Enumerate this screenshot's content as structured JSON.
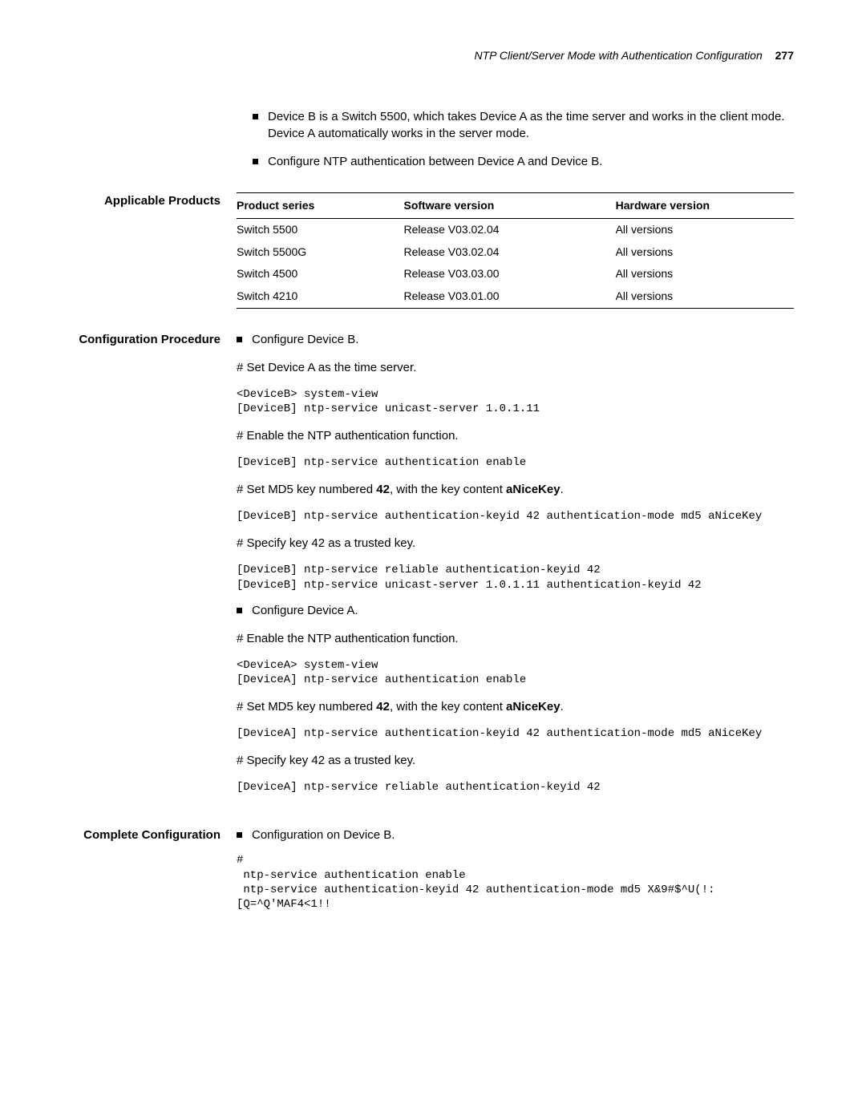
{
  "header": {
    "title": "NTP Client/Server Mode with Authentication Configuration",
    "page": "277"
  },
  "intro_bullets": [
    "Device B is a Switch 5500, which takes Device A as the time server and works in the client mode. Device A automatically works in the server mode.",
    "Configure NTP authentication between Device A and Device B."
  ],
  "sections": {
    "applicable_products": {
      "heading": "Applicable Products",
      "table": {
        "columns": [
          "Product series",
          "Software version",
          "Hardware version"
        ],
        "rows": [
          [
            "Switch 5500",
            "Release V03.02.04",
            "All versions"
          ],
          [
            "Switch 5500G",
            "Release V03.02.04",
            "All versions"
          ],
          [
            "Switch 4500",
            "Release V03.03.00",
            "All versions"
          ],
          [
            "Switch 4210",
            "Release V03.01.00",
            "All versions"
          ]
        ]
      }
    },
    "config_procedure": {
      "heading": "Configuration Procedure",
      "bullet1": "Configure Device B.",
      "step1_text": "# Set Device A as the time server.",
      "step1_code": "<DeviceB> system-view\n[DeviceB] ntp-service unicast-server 1.0.1.11",
      "step2_text": "# Enable the NTP authentication function.",
      "step2_code": "[DeviceB] ntp-service authentication enable",
      "step3_prefix": "# Set MD5 key numbered ",
      "step3_key": "42",
      "step3_mid": ", with the key content ",
      "step3_content": "aNiceKey",
      "step3_suffix": ".",
      "step3_code": "[DeviceB] ntp-service authentication-keyid 42 authentication-mode md5 aNiceKey",
      "step4_text": "# Specify key 42 as a trusted key.",
      "step4_code": "[DeviceB] ntp-service reliable authentication-keyid 42\n[DeviceB] ntp-service unicast-server 1.0.1.11 authentication-keyid 42",
      "bullet2": "Configure Device A.",
      "step5_text": "# Enable the NTP authentication function.",
      "step5_code": "<DeviceA> system-view\n[DeviceA] ntp-service authentication enable",
      "step6_prefix": "# Set MD5 key numbered ",
      "step6_key": "42",
      "step6_mid": ", with the key content ",
      "step6_content": "aNiceKey",
      "step6_suffix": ".",
      "step6_code": "[DeviceA] ntp-service authentication-keyid 42 authentication-mode md5 aNiceKey",
      "step7_text": "# Specify key 42 as a trusted key.",
      "step7_code": "[DeviceA] ntp-service reliable authentication-keyid 42"
    },
    "complete_config": {
      "heading": "Complete Configuration",
      "bullet1": "Configuration on Device B.",
      "code": "#\r\n ntp-service authentication enable\r\n ntp-service authentication-keyid 42 authentication-mode md5 X&9#$^U(!:[Q=^Q'MAF4<1!!"
    }
  }
}
